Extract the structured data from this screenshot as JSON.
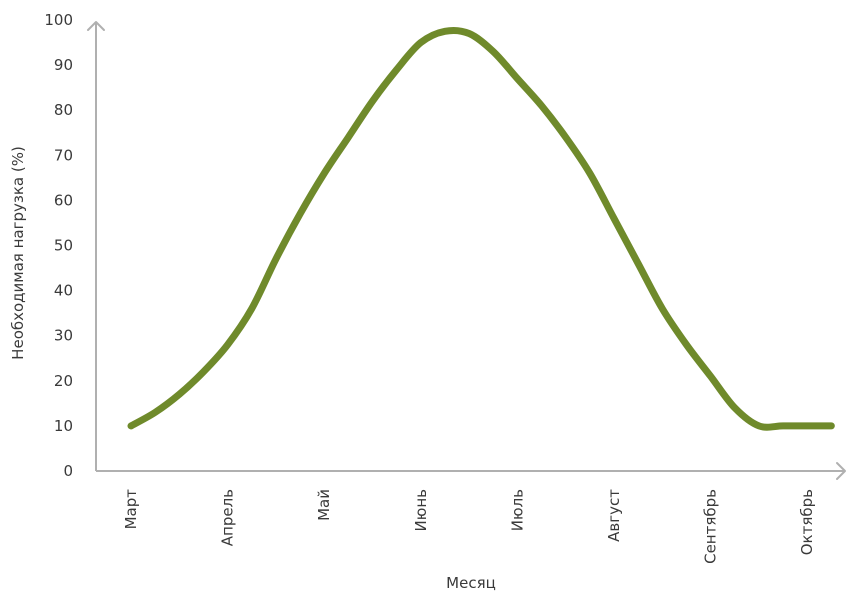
{
  "chart_data": {
    "type": "line",
    "title": "",
    "xlabel": "Месяц",
    "ylabel": "Необходимая нагрузка (%)",
    "ylim": [
      0,
      100
    ],
    "yticks": [
      "0",
      "10",
      "20",
      "30",
      "40",
      "50",
      "60",
      "70",
      "80",
      "90",
      "100"
    ],
    "categories": [
      "Март",
      "Апрель",
      "Май",
      "Июнь",
      "Июль",
      "Август",
      "Сентябрь",
      "Октябрь"
    ],
    "x": [
      0,
      0.25,
      0.5,
      0.75,
      1,
      1.25,
      1.5,
      1.75,
      2,
      2.25,
      2.5,
      2.75,
      3,
      3.25,
      3.5,
      3.75,
      4,
      4.25,
      4.5,
      4.75,
      5,
      5.25,
      5.5,
      5.75,
      6,
      6.25,
      6.5,
      6.75,
      7,
      7.25
    ],
    "series": [
      {
        "color": "#6f8a2b",
        "values": [
          10,
          13,
          17,
          22,
          28,
          36,
          47,
          57,
          66,
          74,
          82,
          89,
          95,
          97.5,
          97,
          93,
          87,
          81,
          74,
          66,
          56,
          46,
          36,
          28,
          21,
          14,
          10,
          10,
          10,
          10
        ]
      }
    ],
    "grid": false,
    "legend": "none"
  }
}
